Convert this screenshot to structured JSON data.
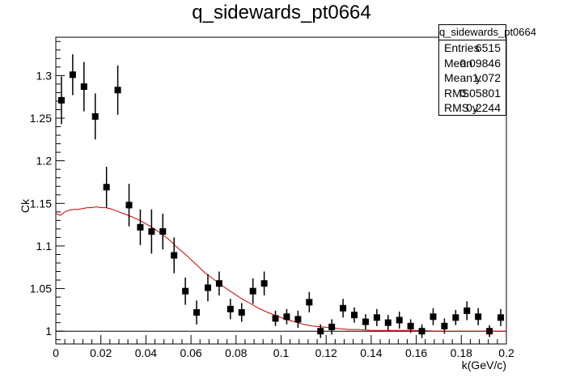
{
  "chart_data": {
    "type": "scatter",
    "title": "q_sidewards_pt0664",
    "xlabel": "k(GeV/c)",
    "ylabel": "Ck",
    "xlim": [
      0,
      0.2
    ],
    "ylim": [
      0.985,
      1.345
    ],
    "x_ticks": [
      "0",
      "0.02",
      "0.04",
      "0.06",
      "0.08",
      "0.1",
      "0.12",
      "0.14",
      "0.16",
      "0.18",
      "0.2"
    ],
    "y_ticks": [
      "1",
      "1.05",
      "1.1",
      "1.15",
      "1.2",
      "1.25",
      "1.3"
    ],
    "reference_line": 1.0,
    "grid": false,
    "legend": "none",
    "series": [
      {
        "x": [
          0.0025,
          0.0075,
          0.0125,
          0.0175,
          0.0225,
          0.0275,
          0.0325,
          0.0375,
          0.0425,
          0.0475,
          0.0525,
          0.0575,
          0.0625,
          0.0675,
          0.0725,
          0.0775,
          0.0825,
          0.0875,
          0.0925,
          0.0975,
          0.1025,
          0.1075,
          0.1125,
          0.1175,
          0.1225,
          0.1275,
          0.1325,
          0.1375,
          0.1425,
          0.1475,
          0.1525,
          0.1575,
          0.1625,
          0.1675,
          0.1725,
          0.1775,
          0.1825,
          0.1875,
          0.1925,
          0.1975
        ],
        "y": [
          1.271,
          1.301,
          1.287,
          1.252,
          1.169,
          1.283,
          1.148,
          1.122,
          1.117,
          1.117,
          1.089,
          1.047,
          1.022,
          1.051,
          1.056,
          1.026,
          1.022,
          1.047,
          1.056,
          1.015,
          1.017,
          1.014,
          1.034,
          1.0,
          1.005,
          1.027,
          1.019,
          1.011,
          1.016,
          1.01,
          1.013,
          1.006,
          1.0,
          1.017,
          1.006,
          1.016,
          1.024,
          1.017,
          1.0,
          1.016
        ],
        "err": [
          0.028,
          0.024,
          0.029,
          0.027,
          0.024,
          0.029,
          0.025,
          0.021,
          0.026,
          0.021,
          0.021,
          0.016,
          0.014,
          0.016,
          0.014,
          0.012,
          0.011,
          0.015,
          0.014,
          0.009,
          0.009,
          0.01,
          0.012,
          0.008,
          0.009,
          0.011,
          0.009,
          0.009,
          0.01,
          0.009,
          0.01,
          0.008,
          0.008,
          0.01,
          0.009,
          0.009,
          0.011,
          0.01,
          0.007,
          0.01
        ],
        "color": "#000000"
      },
      {
        "type": "line",
        "x": [
          0.0,
          0.002,
          0.004,
          0.006,
          0.008,
          0.01,
          0.012,
          0.014,
          0.016,
          0.018,
          0.02,
          0.022,
          0.024,
          0.026,
          0.028,
          0.03,
          0.034,
          0.038,
          0.042,
          0.046,
          0.05,
          0.054,
          0.058,
          0.062,
          0.066,
          0.07,
          0.074,
          0.078,
          0.082,
          0.086,
          0.09,
          0.094,
          0.098,
          0.102,
          0.106,
          0.11,
          0.114,
          0.118,
          0.122,
          0.126,
          0.13,
          0.134,
          0.14,
          0.15,
          0.16,
          0.17,
          0.18,
          0.19,
          0.2
        ],
        "y": [
          1.138,
          1.136,
          1.14,
          1.142,
          1.143,
          1.143,
          1.144,
          1.145,
          1.145,
          1.146,
          1.145,
          1.145,
          1.144,
          1.142,
          1.14,
          1.138,
          1.134,
          1.129,
          1.123,
          1.116,
          1.108,
          1.098,
          1.089,
          1.079,
          1.069,
          1.061,
          1.053,
          1.046,
          1.039,
          1.033,
          1.027,
          1.022,
          1.018,
          1.014,
          1.011,
          1.008,
          1.006,
          1.005,
          1.004,
          1.003,
          1.002,
          1.002,
          1.001,
          1.001,
          1.001,
          1.0,
          1.0,
          1.0,
          1.0
        ],
        "color": "#cc0000"
      }
    ]
  },
  "statbox": {
    "name": "q_sidewards_pt0664",
    "rows": [
      {
        "label": "Entries",
        "value": "6515"
      },
      {
        "label": "Mean",
        "value": "0.09846"
      },
      {
        "label": "Mean y",
        "value": "1.072"
      },
      {
        "label": "RMS",
        "value": "0.05801"
      },
      {
        "label": "RMS y",
        "value": "0.2244"
      }
    ]
  }
}
